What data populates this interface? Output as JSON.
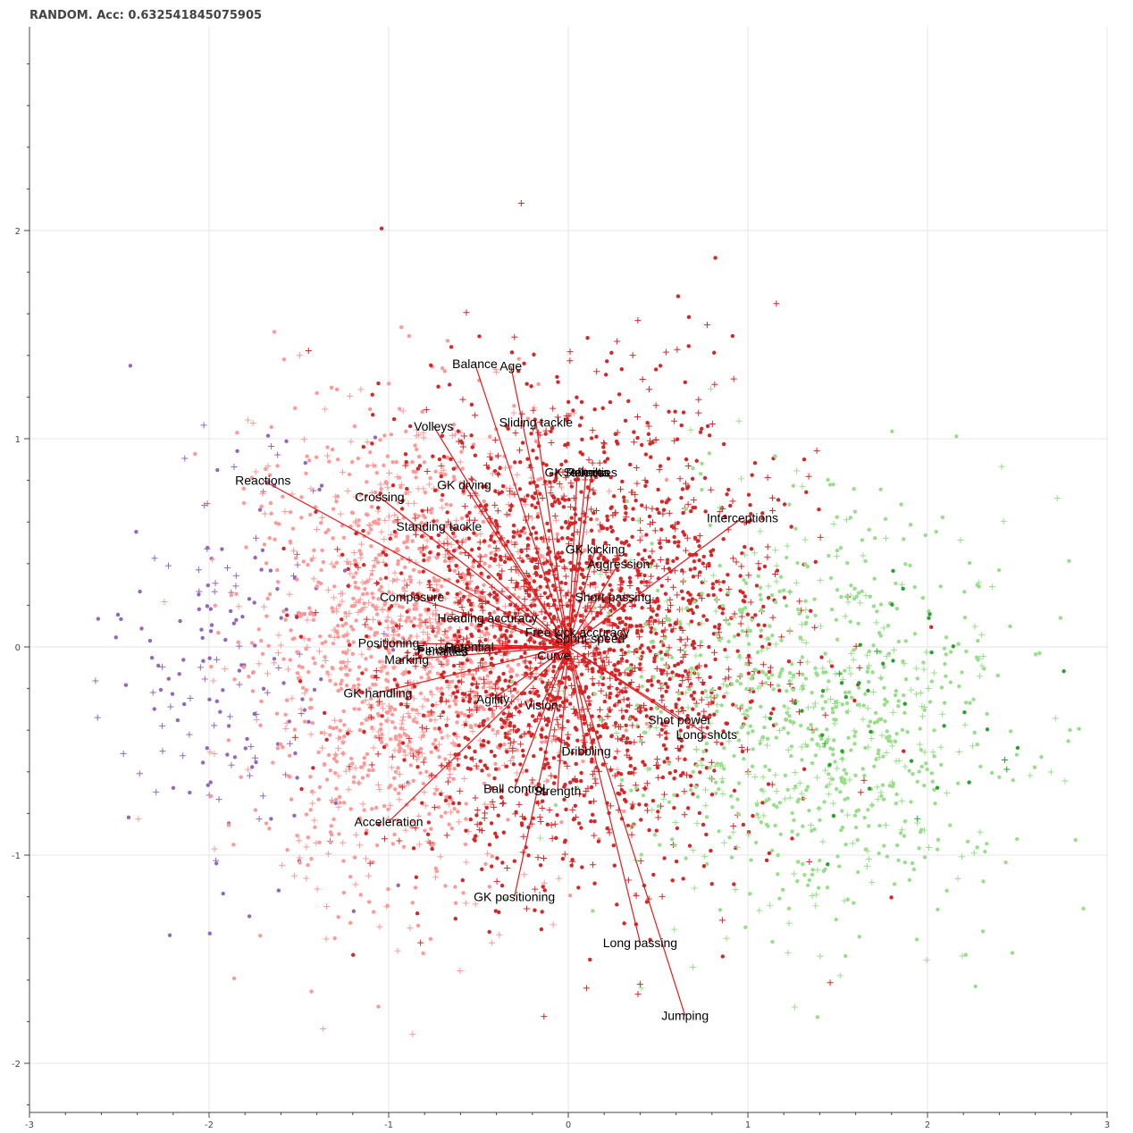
{
  "chart_data": {
    "type": "scatter",
    "title": "RANDOM. Acc: 0.632541845075905",
    "xlim": [
      -3,
      3
    ],
    "ylim": [
      -2.2,
      2.9
    ],
    "x_ticks": [
      -3,
      -2,
      -1,
      0,
      1,
      2,
      3
    ],
    "y_ticks": [
      -2,
      -1,
      0,
      1,
      2
    ],
    "x_tick_labels": [
      "-3",
      "-2",
      "-1",
      "0",
      "1",
      "2",
      "3"
    ],
    "y_tick_labels": [
      "-2",
      "-1",
      "0",
      "1",
      "2"
    ],
    "grid": true,
    "colors": {
      "purple": "#9467bd",
      "light_red": "#ff9896",
      "red": "#d62728",
      "light_green": "#98df8a",
      "green": "#2ca02c",
      "vector": "#e31a1c"
    },
    "clusters": [
      {
        "color": "purple",
        "center": [
          -1.9,
          -0.05
        ],
        "spread": [
          0.35,
          0.55
        ],
        "count": 180
      },
      {
        "color": "light_red",
        "center": [
          -0.9,
          0.0
        ],
        "spread": [
          0.45,
          0.55
        ],
        "count": 1500
      },
      {
        "color": "red",
        "center": [
          0.05,
          0.05
        ],
        "spread": [
          0.55,
          0.55
        ],
        "count": 2400
      },
      {
        "color": "light_green",
        "center": [
          1.35,
          -0.35
        ],
        "spread": [
          0.55,
          0.5
        ],
        "count": 900
      },
      {
        "color": "green",
        "center": [
          1.9,
          -0.3
        ],
        "spread": [
          0.35,
          0.3
        ],
        "count": 40
      }
    ],
    "vectors": [
      {
        "label": "Balance",
        "x": -0.52,
        "y": 1.36
      },
      {
        "label": "Age",
        "x": -0.32,
        "y": 1.35
      },
      {
        "label": "Sliding tackle",
        "x": -0.18,
        "y": 1.08
      },
      {
        "label": "Volleys",
        "x": -0.75,
        "y": 1.06
      },
      {
        "label": "GK reflexes",
        "x": 0.05,
        "y": 0.84
      },
      {
        "label": "Stamina",
        "x": 0.1,
        "y": 0.84
      },
      {
        "label": "Penalties",
        "x": 0.13,
        "y": 0.84
      },
      {
        "label": "Reactions",
        "x": -1.7,
        "y": 0.8
      },
      {
        "label": "GK diving",
        "x": -0.58,
        "y": 0.78
      },
      {
        "label": "Crossing",
        "x": -1.05,
        "y": 0.72
      },
      {
        "label": "Interceptions",
        "x": 0.97,
        "y": 0.62
      },
      {
        "label": "Standing tackle",
        "x": -0.72,
        "y": 0.58
      },
      {
        "label": "GK kicking",
        "x": 0.15,
        "y": 0.47
      },
      {
        "label": "Aggression",
        "x": 0.28,
        "y": 0.4
      },
      {
        "label": "Short passing",
        "x": 0.25,
        "y": 0.24
      },
      {
        "label": "Composure",
        "x": -0.87,
        "y": 0.24
      },
      {
        "label": "Heading accuracy",
        "x": -0.45,
        "y": 0.14
      },
      {
        "label": "Free kick accuracy",
        "x": 0.05,
        "y": 0.07
      },
      {
        "label": "Sprint speed",
        "x": 0.12,
        "y": 0.04
      },
      {
        "label": "Positioning",
        "x": -1.0,
        "y": 0.02
      },
      {
        "label": "Potential",
        "x": -0.55,
        "y": 0.0
      },
      {
        "label": "Finishing",
        "x": -0.7,
        "y": -0.01
      },
      {
        "label": "Penalties",
        "x": -0.7,
        "y": -0.02
      },
      {
        "label": "Curve",
        "x": -0.08,
        "y": -0.04
      },
      {
        "label": "Marking",
        "x": -0.9,
        "y": -0.06
      },
      {
        "label": "GK handling",
        "x": -1.06,
        "y": -0.22
      },
      {
        "label": "Agility",
        "x": -0.42,
        "y": -0.25
      },
      {
        "label": "Vision",
        "x": -0.15,
        "y": -0.28
      },
      {
        "label": "Shot power",
        "x": 0.62,
        "y": -0.35
      },
      {
        "label": "Long shots",
        "x": 0.77,
        "y": -0.42
      },
      {
        "label": "Dribbling",
        "x": 0.1,
        "y": -0.5
      },
      {
        "label": "Ball control",
        "x": -0.3,
        "y": -0.68
      },
      {
        "label": "Strength",
        "x": -0.06,
        "y": -0.69
      },
      {
        "label": "Acceleration",
        "x": -1.0,
        "y": -0.84
      },
      {
        "label": "GK positioning",
        "x": -0.3,
        "y": -1.2
      },
      {
        "label": "Long passing",
        "x": 0.4,
        "y": -1.42
      },
      {
        "label": "Jumping",
        "x": 0.65,
        "y": -1.77
      }
    ]
  }
}
